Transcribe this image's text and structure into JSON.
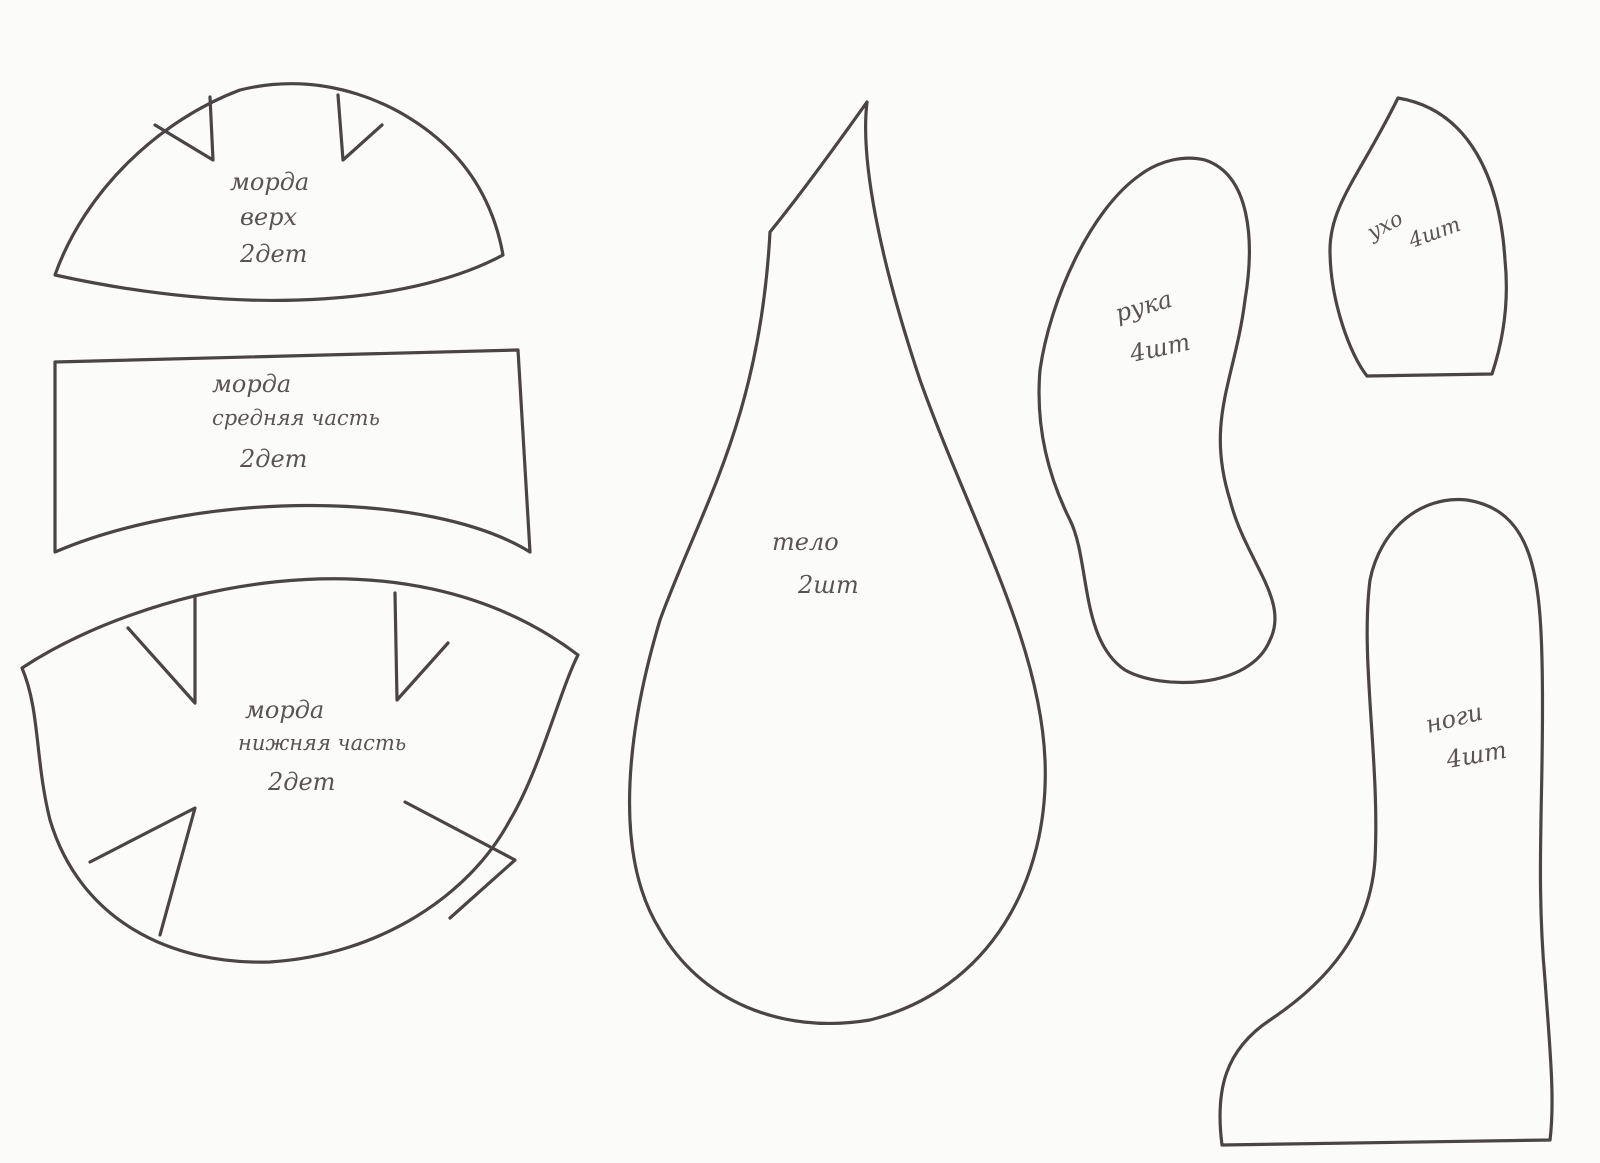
{
  "pieces": {
    "muzzle_top": {
      "name": "морда",
      "sub": "верх",
      "count": "2дет"
    },
    "muzzle_middle": {
      "name": "морда",
      "sub": "средняя часть",
      "count": "2дет"
    },
    "muzzle_bottom": {
      "name": "морда",
      "sub": "нижняя часть",
      "count": "2дет"
    },
    "body": {
      "name": "тело",
      "count": "2шт"
    },
    "arm": {
      "name": "рука",
      "count": "4шт"
    },
    "ear": {
      "name": "ухо",
      "count": "4шт"
    },
    "leg": {
      "name": "ноги",
      "count": "4шт"
    }
  },
  "colors": {
    "paper": "#fbfbfa",
    "pencil": "#4a4446"
  }
}
